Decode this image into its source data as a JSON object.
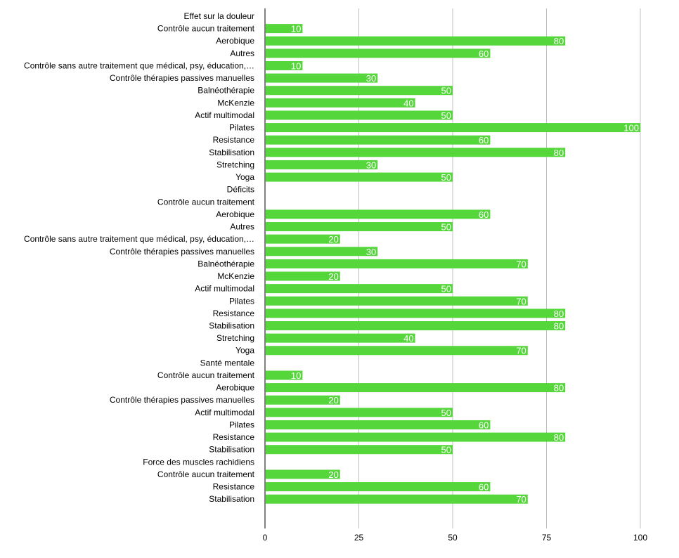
{
  "colors": {
    "bar": "#55d63b",
    "grid": "#c0c0c0",
    "axis": "#000000",
    "value_text": "#ffffff"
  },
  "chart_data": {
    "type": "bar",
    "orientation": "horizontal",
    "title": "",
    "xlabel": "",
    "ylabel": "",
    "xlim": [
      0,
      100
    ],
    "x_ticks": [
      0,
      25,
      50,
      75,
      100
    ],
    "grid": true,
    "legend": "none",
    "categories": [
      "Effet sur la douleur",
      "Contrôle aucun traitement",
      "Aerobique",
      "Autres",
      "Contrôle sans autre traitement que médical, psy, éducation,…",
      "Contrôle thérapies passives manuelles",
      "Balnéothérapie",
      "McKenzie",
      "Actif multimodal",
      "Pilates",
      "Resistance",
      "Stabilisation",
      "Stretching",
      "Yoga",
      "Déficits",
      "Contrôle aucun traitement",
      "Aerobique",
      "Autres",
      "Contrôle sans autre traitement que médical, psy, éducation,…",
      "Contrôle thérapies passives manuelles",
      "Balnéothérapie",
      "McKenzie",
      "Actif multimodal",
      "Pilates",
      "Resistance",
      "Stabilisation",
      "Stretching",
      "Yoga",
      "Santé mentale",
      "Contrôle aucun traitement",
      "Aerobique",
      "Contrôle thérapies passives manuelles",
      "Actif multimodal",
      "Pilates",
      "Resistance",
      "Stabilisation",
      "Force des muscles rachidiens",
      "Contrôle aucun traitement",
      "Resistance",
      "Stabilisation"
    ],
    "values": [
      null,
      10,
      80,
      60,
      10,
      30,
      50,
      40,
      50,
      100,
      60,
      80,
      30,
      50,
      null,
      null,
      60,
      50,
      20,
      30,
      70,
      20,
      50,
      70,
      80,
      80,
      40,
      70,
      null,
      10,
      80,
      20,
      50,
      60,
      80,
      50,
      null,
      20,
      60,
      70
    ]
  }
}
